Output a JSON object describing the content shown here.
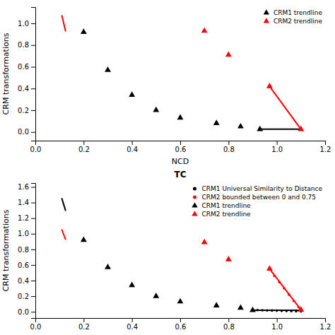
{
  "chart_data": [
    {
      "type": "scatter",
      "xlabel": "NCD",
      "ylabel": "CRM transformations",
      "xlim": [
        0.0,
        1.2
      ],
      "ylim": [
        -0.08,
        1.15
      ],
      "xticks": [
        {
          "value": 0.0,
          "label": "0.0"
        },
        0.2,
        0.4,
        0.6,
        0.8,
        {
          "value": 1.0,
          "label": "1.0"
        },
        1.2
      ],
      "yticks": [
        {
          "value": 0.0,
          "label": "0.0"
        },
        0.2,
        0.4,
        0.6,
        0.8,
        {
          "value": 1.0,
          "label": "1.0"
        }
      ],
      "grid": false,
      "legend": "upper right",
      "series": [
        {
          "type": "line",
          "color": "red",
          "x": [
            0.11,
            0.125
          ],
          "values": [
            1.07,
            0.93
          ]
        },
        {
          "type": "scatter",
          "color": "black",
          "marker": "triangle",
          "x": [
            0.2,
            0.3,
            0.4,
            0.5,
            0.6
          ],
          "values": [
            0.92,
            0.57,
            0.34,
            0.2,
            0.13
          ]
        },
        {
          "type": "scatter",
          "color": "black",
          "marker": "triangle",
          "x": [
            0.75,
            0.85
          ],
          "values": [
            0.08,
            0.05
          ]
        },
        {
          "type": "scatter",
          "color": "red",
          "marker": "triangle",
          "x": [
            0.7,
            0.8
          ],
          "values": [
            0.93,
            0.71
          ]
        },
        {
          "type": "line",
          "color": "black",
          "x": [
            0.93,
            1.1
          ],
          "values": [
            0.025,
            0.025
          ]
        },
        {
          "type": "line",
          "color": "red",
          "x": [
            0.97,
            1.1
          ],
          "values": [
            0.42,
            0.025
          ]
        },
        {
          "name": "CRM1 trendline",
          "type": "scatter",
          "color": "black",
          "marker": "triangle",
          "x": [
            0.93
          ],
          "values": [
            0.025
          ]
        },
        {
          "name": "CRM2 trendline",
          "type": "scatter",
          "color": "red",
          "marker": "triangle",
          "x": [
            0.97,
            1.1
          ],
          "values": [
            0.42,
            0.025
          ]
        }
      ]
    },
    {
      "type": "scatter",
      "title": "TC",
      "ylabel": "CRM transformations",
      "xlim": [
        0.0,
        1.2
      ],
      "ylim": [
        -0.08,
        1.65
      ],
      "xticks": [
        {
          "value": 0.0,
          "label": "0.0"
        },
        0.2,
        0.4,
        0.6,
        0.8,
        {
          "value": 1.0,
          "label": "1.0"
        },
        1.2
      ],
      "yticks": [
        {
          "value": 0.0,
          "label": "0.0"
        },
        0.2,
        0.4,
        0.6,
        0.8,
        {
          "value": 1.0,
          "label": "1.0"
        },
        1.2,
        1.4,
        1.6
      ],
      "grid": false,
      "legend": "upper right",
      "series": [
        {
          "type": "line",
          "color": "black",
          "x": [
            0.11,
            0.125
          ],
          "values": [
            1.45,
            1.3
          ]
        },
        {
          "type": "line",
          "color": "red",
          "x": [
            0.11,
            0.125
          ],
          "values": [
            1.05,
            0.93
          ]
        },
        {
          "type": "scatter",
          "color": "black",
          "marker": "triangle",
          "x": [
            0.2,
            0.3,
            0.4,
            0.5,
            0.6
          ],
          "values": [
            0.92,
            0.57,
            0.34,
            0.2,
            0.13
          ]
        },
        {
          "type": "scatter",
          "color": "black",
          "marker": "triangle",
          "x": [
            0.75,
            0.85
          ],
          "values": [
            0.08,
            0.05
          ]
        },
        {
          "type": "scatter",
          "color": "red",
          "marker": "triangle",
          "x": [
            0.7,
            0.8
          ],
          "values": [
            0.89,
            0.67
          ]
        },
        {
          "type": "line",
          "color": "black",
          "x": [
            0.9,
            1.1
          ],
          "values": [
            0.02,
            0.02
          ]
        },
        {
          "name": "CRM1 Universal Similarity to Distance",
          "type": "scatter",
          "color": "black",
          "marker": "dot",
          "x": [
            0.9,
            0.92,
            0.94,
            0.96,
            0.98,
            1.0,
            1.02,
            1.04,
            1.06,
            1.08,
            1.1
          ],
          "values": [
            0.025,
            0.022,
            0.02,
            0.018,
            0.016,
            0.014,
            0.012,
            0.01,
            0.008,
            0.006,
            0.005
          ]
        },
        {
          "type": "line",
          "color": "red",
          "x": [
            0.97,
            1.1
          ],
          "values": [
            0.55,
            0.025
          ]
        },
        {
          "name": "CRM2 bounded between 0 and 0.75",
          "type": "scatter",
          "color": "red",
          "marker": "dot",
          "x": [
            0.97,
            0.99,
            1.01,
            1.03,
            1.05,
            1.07,
            1.09
          ],
          "values": [
            0.55,
            0.46,
            0.38,
            0.3,
            0.22,
            0.14,
            0.06
          ]
        },
        {
          "name": "CRM1 trendline",
          "type": "scatter",
          "color": "black",
          "marker": "triangle",
          "x": [
            0.9
          ],
          "values": [
            0.02
          ]
        },
        {
          "name": "CRM2 trendline",
          "type": "scatter",
          "color": "red",
          "marker": "triangle",
          "x": [
            0.97,
            1.1
          ],
          "values": [
            0.55,
            0.025
          ]
        }
      ]
    }
  ]
}
